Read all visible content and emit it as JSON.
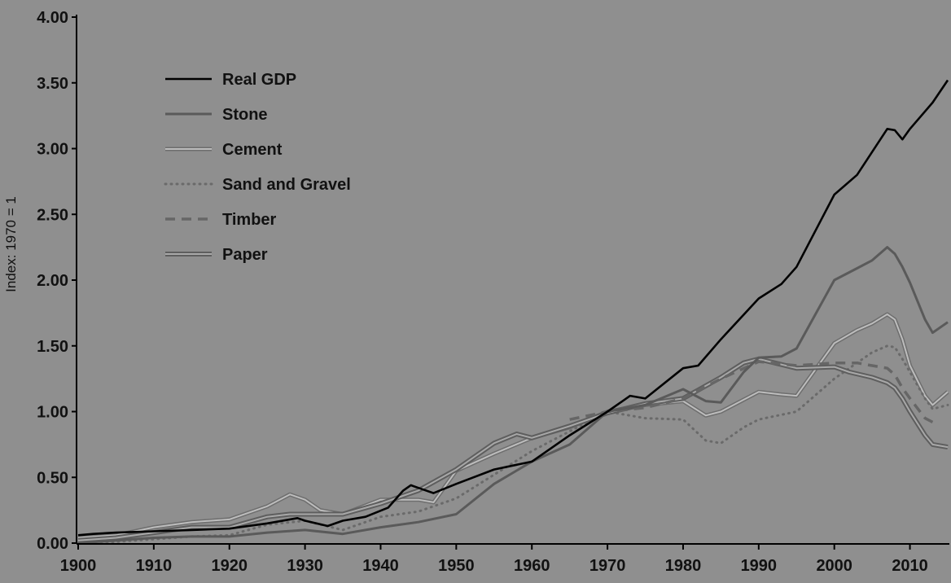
{
  "chart_data": {
    "type": "line",
    "title": "",
    "xlabel": "",
    "ylabel": "Index: 1970 = 1",
    "xlim": [
      1900,
      2015
    ],
    "ylim": [
      0,
      4
    ],
    "x_ticks": [
      "1900",
      "1910",
      "1920",
      "1930",
      "1940",
      "1950",
      "1960",
      "1970",
      "1980",
      "1990",
      "2000",
      "2010"
    ],
    "y_ticks": [
      "0.00",
      "0.50",
      "1.00",
      "1.50",
      "2.00",
      "2.50",
      "3.00",
      "3.50",
      "4.00"
    ],
    "legend_position": "top-left",
    "series": [
      {
        "name": "Real GDP",
        "style": "solid-black",
        "x": [
          1900,
          1902,
          1905,
          1910,
          1915,
          1920,
          1925,
          1929,
          1930,
          1933,
          1935,
          1938,
          1941,
          1943,
          1944,
          1945,
          1947,
          1950,
          1955,
          1960,
          1965,
          1970,
          1973,
          1975,
          1980,
          1982,
          1985,
          1990,
          1993,
          1995,
          2000,
          2003,
          2007,
          2008,
          2009,
          2010,
          2013,
          2015
        ],
        "y": [
          0.06,
          0.07,
          0.08,
          0.09,
          0.1,
          0.11,
          0.15,
          0.19,
          0.17,
          0.13,
          0.17,
          0.2,
          0.27,
          0.4,
          0.44,
          0.42,
          0.38,
          0.45,
          0.56,
          0.62,
          0.82,
          1.0,
          1.12,
          1.1,
          1.33,
          1.35,
          1.55,
          1.86,
          1.97,
          2.1,
          2.65,
          2.8,
          3.15,
          3.14,
          3.07,
          3.15,
          3.35,
          3.52
        ]
      },
      {
        "name": "Stone",
        "style": "solid-dark-gray",
        "x": [
          1900,
          1905,
          1910,
          1915,
          1920,
          1925,
          1930,
          1935,
          1940,
          1945,
          1950,
          1955,
          1960,
          1965,
          1970,
          1975,
          1980,
          1983,
          1985,
          1988,
          1990,
          1993,
          1995,
          2000,
          2003,
          2005,
          2007,
          2008,
          2009,
          2010,
          2012,
          2013,
          2015
        ],
        "y": [
          0.0,
          0.02,
          0.04,
          0.05,
          0.05,
          0.08,
          0.1,
          0.07,
          0.12,
          0.16,
          0.22,
          0.45,
          0.62,
          0.75,
          1.0,
          1.05,
          1.17,
          1.08,
          1.07,
          1.3,
          1.41,
          1.42,
          1.48,
          2.0,
          2.09,
          2.15,
          2.25,
          2.2,
          2.1,
          1.98,
          1.7,
          1.6,
          1.68
        ]
      },
      {
        "name": "Cement",
        "style": "double-line",
        "x": [
          1900,
          1905,
          1910,
          1915,
          1920,
          1925,
          1928,
          1930,
          1932,
          1935,
          1940,
          1945,
          1947,
          1950,
          1955,
          1960,
          1965,
          1970,
          1975,
          1980,
          1983,
          1985,
          1990,
          1993,
          1995,
          2000,
          2003,
          2005,
          2007,
          2008,
          2009,
          2010,
          2012,
          2013,
          2015
        ],
        "y": [
          0.04,
          0.06,
          0.12,
          0.16,
          0.18,
          0.28,
          0.37,
          0.33,
          0.25,
          0.22,
          0.33,
          0.33,
          0.31,
          0.55,
          0.68,
          0.8,
          0.88,
          1.0,
          1.05,
          1.08,
          0.97,
          1.0,
          1.15,
          1.13,
          1.12,
          1.52,
          1.62,
          1.67,
          1.74,
          1.7,
          1.55,
          1.35,
          1.12,
          1.05,
          1.15
        ]
      },
      {
        "name": "Sand and Gravel",
        "style": "dotted",
        "x": [
          1900,
          1905,
          1910,
          1915,
          1920,
          1925,
          1930,
          1935,
          1940,
          1945,
          1950,
          1955,
          1960,
          1965,
          1970,
          1975,
          1980,
          1983,
          1985,
          1988,
          1990,
          1995,
          2000,
          2005,
          2007,
          2008,
          2009,
          2010,
          2012,
          2013,
          2015
        ],
        "y": [
          0.0,
          0.01,
          0.03,
          0.05,
          0.06,
          0.14,
          0.17,
          0.1,
          0.2,
          0.24,
          0.34,
          0.52,
          0.7,
          0.85,
          1.0,
          0.95,
          0.94,
          0.78,
          0.76,
          0.88,
          0.94,
          1.0,
          1.25,
          1.45,
          1.5,
          1.49,
          1.4,
          1.3,
          1.1,
          1.02,
          1.05
        ]
      },
      {
        "name": "Timber",
        "style": "dashed",
        "x": [
          1965,
          1970,
          1975,
          1980,
          1985,
          1990,
          1995,
          2000,
          2003,
          2005,
          2007,
          2008,
          2009,
          2010,
          2012,
          2013
        ],
        "y": [
          0.94,
          1.0,
          1.03,
          1.1,
          1.25,
          1.38,
          1.35,
          1.37,
          1.37,
          1.35,
          1.33,
          1.28,
          1.18,
          1.1,
          0.95,
          0.92
        ]
      },
      {
        "name": "Paper",
        "style": "double-heavy",
        "x": [
          1900,
          1905,
          1910,
          1915,
          1920,
          1925,
          1928,
          1930,
          1935,
          1940,
          1945,
          1950,
          1955,
          1958,
          1960,
          1965,
          1970,
          1975,
          1980,
          1985,
          1988,
          1990,
          1995,
          2000,
          2002,
          2005,
          2007,
          2008,
          2009,
          2010,
          2012,
          2013,
          2015
        ],
        "y": [
          0.02,
          0.04,
          0.08,
          0.12,
          0.12,
          0.2,
          0.22,
          0.22,
          0.22,
          0.3,
          0.4,
          0.56,
          0.76,
          0.83,
          0.8,
          0.89,
          0.99,
          1.06,
          1.1,
          1.26,
          1.37,
          1.4,
          1.33,
          1.34,
          1.3,
          1.26,
          1.22,
          1.18,
          1.1,
          1.0,
          0.82,
          0.75,
          0.73
        ]
      }
    ]
  }
}
